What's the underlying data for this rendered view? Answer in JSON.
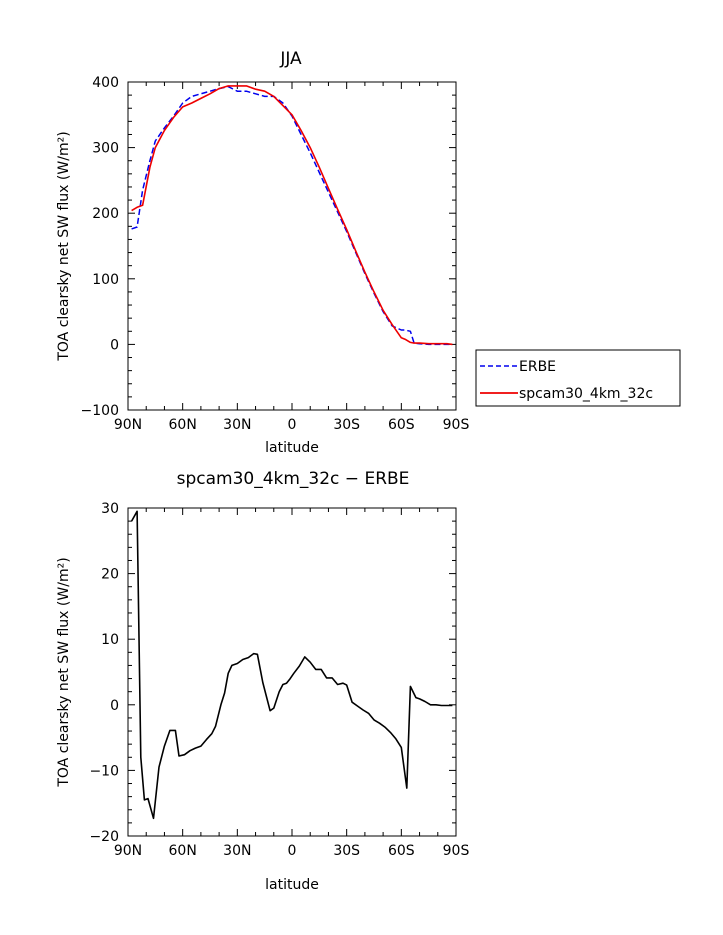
{
  "chart_data": [
    {
      "type": "line",
      "title": "JJA",
      "xlabel": "latitude",
      "ylabel": "TOA clearsky net SW flux (W/m²)",
      "xlim": [
        -90,
        90
      ],
      "ylim": [
        -100,
        400
      ],
      "x_ticks": [
        {
          "value": -90,
          "label": "90N"
        },
        {
          "value": -60,
          "label": "60N"
        },
        {
          "value": -30,
          "label": "30N"
        },
        {
          "value": 0,
          "label": "0"
        },
        {
          "value": 30,
          "label": "30S"
        },
        {
          "value": 60,
          "label": "60S"
        },
        {
          "value": 90,
          "label": "90S"
        }
      ],
      "y_ticks": [
        -100,
        0,
        100,
        200,
        300,
        400
      ],
      "legend": "right",
      "series": [
        {
          "name": "ERBE",
          "color": "#0000ee",
          "style": "dashed",
          "x": [
            -88,
            -85,
            -82,
            -78,
            -75,
            -70,
            -65,
            -60,
            -55,
            -50,
            -45,
            -40,
            -35,
            -30,
            -25,
            -20,
            -15,
            -10,
            -5,
            0,
            5,
            10,
            15,
            20,
            25,
            30,
            35,
            40,
            45,
            50,
            55,
            60,
            62,
            65,
            67,
            70,
            75,
            80,
            85,
            88
          ],
          "y": [
            176,
            179,
            235,
            280,
            310,
            330,
            348,
            368,
            378,
            382,
            386,
            390,
            393,
            386,
            386,
            382,
            378,
            378,
            368,
            348,
            320,
            292,
            262,
            232,
            202,
            172,
            140,
            108,
            78,
            50,
            28,
            22,
            22,
            20,
            2,
            1,
            0,
            0,
            0,
            0
          ]
        },
        {
          "name": "spcam30_4km_32c",
          "color": "#ee0000",
          "style": "solid",
          "x": [
            -88,
            -85,
            -82,
            -78,
            -75,
            -70,
            -65,
            -60,
            -55,
            -50,
            -45,
            -40,
            -35,
            -30,
            -25,
            -20,
            -15,
            -10,
            -5,
            0,
            5,
            10,
            15,
            20,
            25,
            30,
            35,
            40,
            45,
            50,
            55,
            60,
            62,
            65,
            67,
            70,
            75,
            80,
            85,
            88
          ],
          "y": [
            204,
            209,
            212,
            270,
            300,
            326,
            346,
            362,
            368,
            375,
            382,
            390,
            394,
            394,
            394,
            389,
            386,
            378,
            364,
            350,
            326,
            300,
            270,
            238,
            206,
            175,
            142,
            110,
            80,
            52,
            30,
            10,
            8,
            3,
            2,
            2,
            1,
            1,
            1,
            0
          ]
        }
      ]
    },
    {
      "type": "line",
      "title": "spcam30_4km_32c − ERBE",
      "xlabel": "latitude",
      "ylabel": "TOA clearsky net SW flux (W/m²)",
      "xlim": [
        -90,
        90
      ],
      "ylim": [
        -20,
        30
      ],
      "x_ticks": [
        {
          "value": -90,
          "label": "90N"
        },
        {
          "value": -60,
          "label": "60N"
        },
        {
          "value": -30,
          "label": "30N"
        },
        {
          "value": 0,
          "label": "0"
        },
        {
          "value": 30,
          "label": "30S"
        },
        {
          "value": 60,
          "label": "60S"
        },
        {
          "value": 90,
          "label": "90S"
        }
      ],
      "y_ticks": [
        -20,
        -10,
        0,
        10,
        20,
        30
      ],
      "series": [
        {
          "color": "#000000",
          "style": "solid",
          "x": [
            -88,
            -85,
            -83,
            -81,
            -79,
            -76,
            -73,
            -70,
            -67,
            -64,
            -62,
            -59,
            -56,
            -53,
            -50,
            -47,
            -44,
            -42,
            -39,
            -37,
            -35,
            -33,
            -30,
            -27,
            -24,
            -21,
            -19,
            -16,
            -12,
            -10,
            -7,
            -5,
            -3,
            -1,
            1,
            4,
            7,
            10,
            13,
            16,
            19,
            22,
            25,
            28,
            30,
            33,
            36,
            39,
            42,
            45,
            48,
            51,
            54,
            57,
            60,
            63,
            65,
            68,
            70,
            73,
            76,
            79,
            82,
            85,
            88
          ],
          "y": [
            28,
            29.5,
            -8,
            -14.5,
            -14.3,
            -17.3,
            -9.5,
            -6.3,
            -3.9,
            -3.9,
            -7.8,
            -7.6,
            -7,
            -6.6,
            -6.3,
            -5.3,
            -4.4,
            -3.3,
            0,
            1.8,
            4.8,
            6,
            6.3,
            6.9,
            7.2,
            7.8,
            7.7,
            3.4,
            -0.9,
            -0.5,
            2,
            3.1,
            3.3,
            4,
            4.8,
            5.9,
            7.3,
            6.5,
            5.4,
            5.4,
            4.1,
            4.1,
            3.1,
            3.3,
            3,
            0.4,
            -0.2,
            -0.8,
            -1.3,
            -2.3,
            -2.8,
            -3.4,
            -4.2,
            -5.2,
            -6.5,
            -12.7,
            2.8,
            1.1,
            0.9,
            0.5,
            0,
            0,
            -0.1,
            -0.1,
            -0.1
          ]
        }
      ]
    }
  ]
}
